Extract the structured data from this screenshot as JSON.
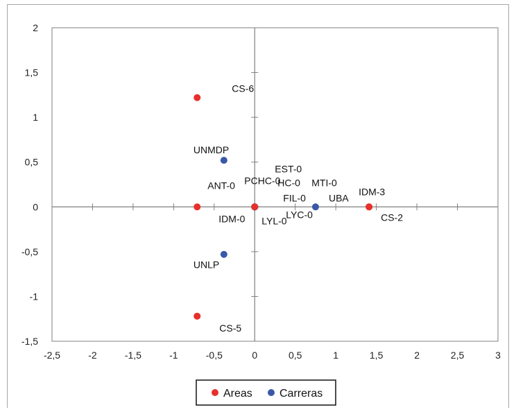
{
  "chart_data": {
    "type": "scatter",
    "title": "",
    "xlabel": "",
    "ylabel": "",
    "xlim": [
      -2.5,
      3
    ],
    "ylim": [
      -1.5,
      2
    ],
    "x_ticks": [
      "-2,5",
      "-2",
      "-1,5",
      "-1",
      "-0,5",
      "0",
      "0,5",
      "1",
      "1,5",
      "2",
      "2,5",
      "3"
    ],
    "y_ticks": [
      "2",
      "1,5",
      "1",
      "0,5",
      "0",
      "-0,5",
      "-1",
      "-1,5"
    ],
    "grid": false,
    "legend_position": "bottom",
    "series": [
      {
        "name": "Areas",
        "color": "#e8302a",
        "points": [
          {
            "label": "CS-6",
            "x": -0.71,
            "y": 1.22
          },
          {
            "label": "ANT-0",
            "x": -0.71,
            "y": 0.0
          },
          {
            "label": "CS-5",
            "x": -0.71,
            "y": -1.22
          },
          {
            "label": "IDM-0",
            "x": 0.0,
            "y": 0.0
          },
          {
            "label": "IDM-3",
            "x": 1.41,
            "y": 0.0
          },
          {
            "label": "CS-2",
            "x": 1.41,
            "y": 0.0
          }
        ]
      },
      {
        "name": "Carreras",
        "color": "#3a58a8",
        "points": [
          {
            "label": "UNMDP",
            "x": -0.38,
            "y": 0.52
          },
          {
            "label": "UNLP",
            "x": -0.38,
            "y": -0.53
          },
          {
            "label": "UBA",
            "x": 0.75,
            "y": 0.0
          },
          {
            "label": "EST-0",
            "x": 0.0,
            "y": 0.0
          },
          {
            "label": "PCHC-0",
            "x": 0.0,
            "y": 0.0
          },
          {
            "label": "HC-0",
            "x": 0.0,
            "y": 0.0
          },
          {
            "label": "MTI-0",
            "x": 0.0,
            "y": 0.0
          },
          {
            "label": "FIL-0",
            "x": 0.0,
            "y": 0.0
          },
          {
            "label": "LYC-0",
            "x": 0.0,
            "y": 0.0
          },
          {
            "label": "LYL-0",
            "x": 0.0,
            "y": 0.0
          }
        ]
      }
    ],
    "legend": [
      "Areas",
      "Carreras"
    ]
  }
}
